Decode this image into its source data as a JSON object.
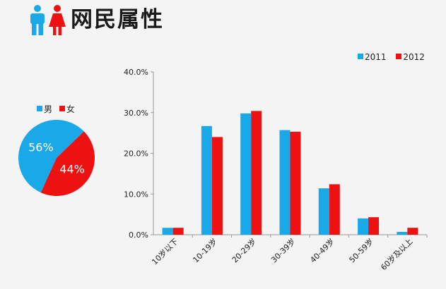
{
  "page": {
    "title": "网民属性"
  },
  "icons": {
    "male": "male-figure-icon",
    "female": "female-figure-icon"
  },
  "colors": {
    "male": "#1aa9e8",
    "female": "#ee1111",
    "series_2011": "#1aa9e8",
    "series_2012": "#ee1111"
  },
  "chart_data": [
    {
      "type": "pie",
      "legend": [
        "男",
        "女"
      ],
      "slices": [
        {
          "name": "男",
          "value": 56,
          "label": "56%"
        },
        {
          "name": "女",
          "value": 44,
          "label": "44%"
        }
      ]
    },
    {
      "type": "bar",
      "categories": [
        "10岁以下",
        "10-19岁",
        "20-29岁",
        "30-39岁",
        "40-49岁",
        "50-59岁",
        "60岁及以上"
      ],
      "series": [
        {
          "name": "2011",
          "values": [
            1.7,
            26.7,
            29.8,
            25.7,
            11.4,
            4.0,
            0.7
          ]
        },
        {
          "name": "2012",
          "values": [
            1.7,
            24.0,
            30.4,
            25.3,
            12.4,
            4.3,
            1.7
          ]
        }
      ],
      "yticks": [
        "0.0%",
        "10.0%",
        "20.0%",
        "30.0%",
        "40.0%"
      ],
      "ylim": [
        0,
        40
      ],
      "grid": false,
      "legend_position": "top-right"
    }
  ]
}
